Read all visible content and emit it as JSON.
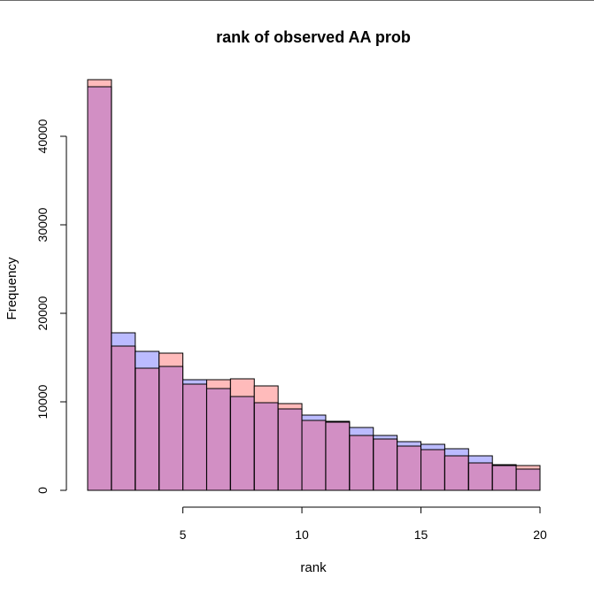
{
  "chart_data": {
    "type": "bar",
    "title": "rank of observed AA prob",
    "xlabel": "rank",
    "ylabel": "Frequency",
    "bin_edges": [
      1,
      2,
      3,
      4,
      5,
      6,
      7,
      8,
      9,
      10,
      11,
      12,
      13,
      14,
      15,
      16,
      17,
      18,
      19,
      20
    ],
    "xlim": [
      1,
      20
    ],
    "ylim": [
      0,
      46500
    ],
    "x_ticks": [
      5,
      10,
      15,
      20
    ],
    "y_ticks": [
      0,
      10000,
      20000,
      30000,
      40000
    ],
    "series": [
      {
        "color": "#bbbbff",
        "values": [
          45600,
          17800,
          15700,
          14000,
          12500,
          11500,
          10600,
          9900,
          9200,
          8500,
          7800,
          7100,
          6200,
          5500,
          5200,
          4700,
          3900,
          2900,
          2400
        ]
      },
      {
        "color": "#ffbbbb",
        "values": [
          46400,
          16300,
          13800,
          15500,
          12000,
          12500,
          12600,
          11800,
          9800,
          7900,
          7700,
          6200,
          5800,
          5000,
          4600,
          3900,
          3100,
          2800,
          2800
        ]
      }
    ],
    "overlap_color": "#d28fc4",
    "grid": false
  }
}
